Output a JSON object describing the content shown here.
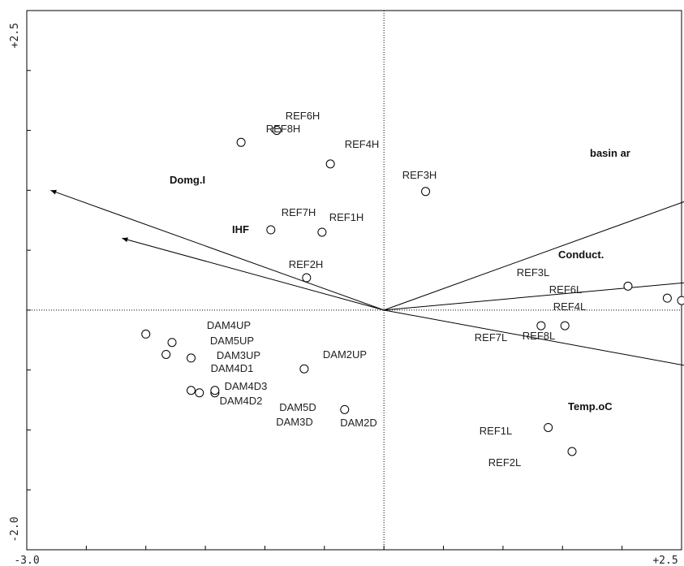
{
  "chart_data": {
    "type": "scatter",
    "xlim": [
      -3.0,
      2.5
    ],
    "ylim": [
      -2.0,
      2.5
    ],
    "tick_labels": {
      "x_min": "-3.0",
      "x_max": "+2.5",
      "y_min": "-2.0",
      "y_max": "+2.5"
    },
    "points": [
      {
        "label": "REF6H",
        "x": -0.9,
        "y": 1.5
      },
      {
        "label": "REF8H",
        "x": -1.2,
        "y": 1.4
      },
      {
        "label": "REF4H",
        "x": -0.45,
        "y": 1.22
      },
      {
        "label": "REF3H",
        "x": 0.35,
        "y": 0.99
      },
      {
        "label": "REF7H",
        "x": -0.95,
        "y": 0.67
      },
      {
        "label": "REF1H",
        "x": -0.52,
        "y": 0.65
      },
      {
        "label": "REF2H",
        "x": -0.65,
        "y": 0.27
      },
      {
        "label": "REF3L",
        "x": 2.05,
        "y": 0.2
      },
      {
        "label": "REF6L",
        "x": 2.38,
        "y": 0.1
      },
      {
        "label": "REF4L",
        "x": 2.5,
        "y": 0.08
      },
      {
        "label": "REF7L",
        "x": 1.32,
        "y": -0.13
      },
      {
        "label": "REF8L",
        "x": 1.52,
        "y": -0.13
      },
      {
        "label": "REF1L",
        "x": 1.38,
        "y": -0.98
      },
      {
        "label": "REF2L",
        "x": 1.58,
        "y": -1.18
      },
      {
        "label": "DAM4UP",
        "x": -2.0,
        "y": -0.2
      },
      {
        "label": "DAM5UP",
        "x": -1.78,
        "y": -0.27
      },
      {
        "label": "DAM3UP",
        "x": -1.62,
        "y": -0.4
      },
      {
        "label": "DAM4D1",
        "x": -1.83,
        "y": -0.37
      },
      {
        "label": "DAM2UP",
        "x": -0.67,
        "y": -0.49
      },
      {
        "label": "DAM4D3",
        "x": -1.62,
        "y": -0.67
      },
      {
        "label": "DAM4D2",
        "x": -1.55,
        "y": -0.69
      },
      {
        "label": "DAM5D",
        "x": -1.42,
        "y": -0.69
      },
      {
        "label": "DAM3D",
        "x": -1.42,
        "y": -0.67
      },
      {
        "label": "DAM2D",
        "x": -0.33,
        "y": -0.83
      }
    ],
    "vectors": [
      {
        "label": "basin ar",
        "x": 3.4,
        "y": 1.22
      },
      {
        "label": "Conduct.",
        "x": 4.2,
        "y": 0.38
      },
      {
        "label": "Temp.oC",
        "x": 4.1,
        "y": -0.75
      },
      {
        "label": "Domg.I",
        "x": -2.8,
        "y": 1.0
      },
      {
        "label": "IHF",
        "x": -2.2,
        "y": 0.6
      }
    ]
  }
}
